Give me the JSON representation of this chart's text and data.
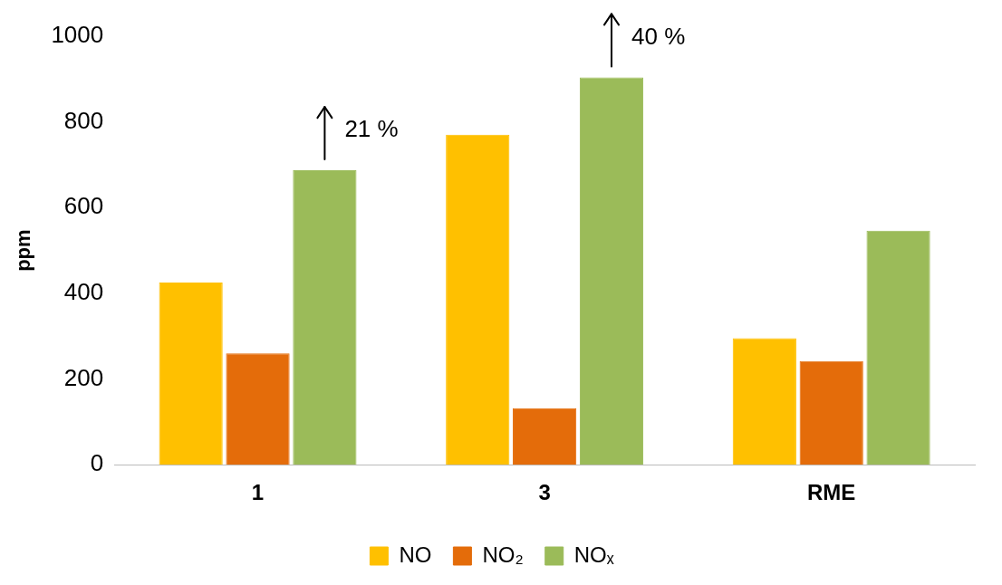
{
  "chart_data": {
    "type": "bar",
    "ylabel": "ppm",
    "categories": [
      "1",
      "3",
      "RME"
    ],
    "series": [
      {
        "name": "NO",
        "color": "#ffc000",
        "values": [
          425,
          770,
          295
        ]
      },
      {
        "name": "NO₂",
        "color": "#e46c0a",
        "values": [
          260,
          132,
          242
        ]
      },
      {
        "name": "NOₓ",
        "color": "#9bbb59",
        "values": [
          687,
          904,
          546
        ]
      }
    ],
    "ylim": [
      0,
      1000
    ],
    "yticks": [
      0,
      200,
      400,
      600,
      800,
      1000
    ],
    "grid": false,
    "legend": "bottom",
    "annotations": [
      "21 %",
      "40 %"
    ]
  }
}
